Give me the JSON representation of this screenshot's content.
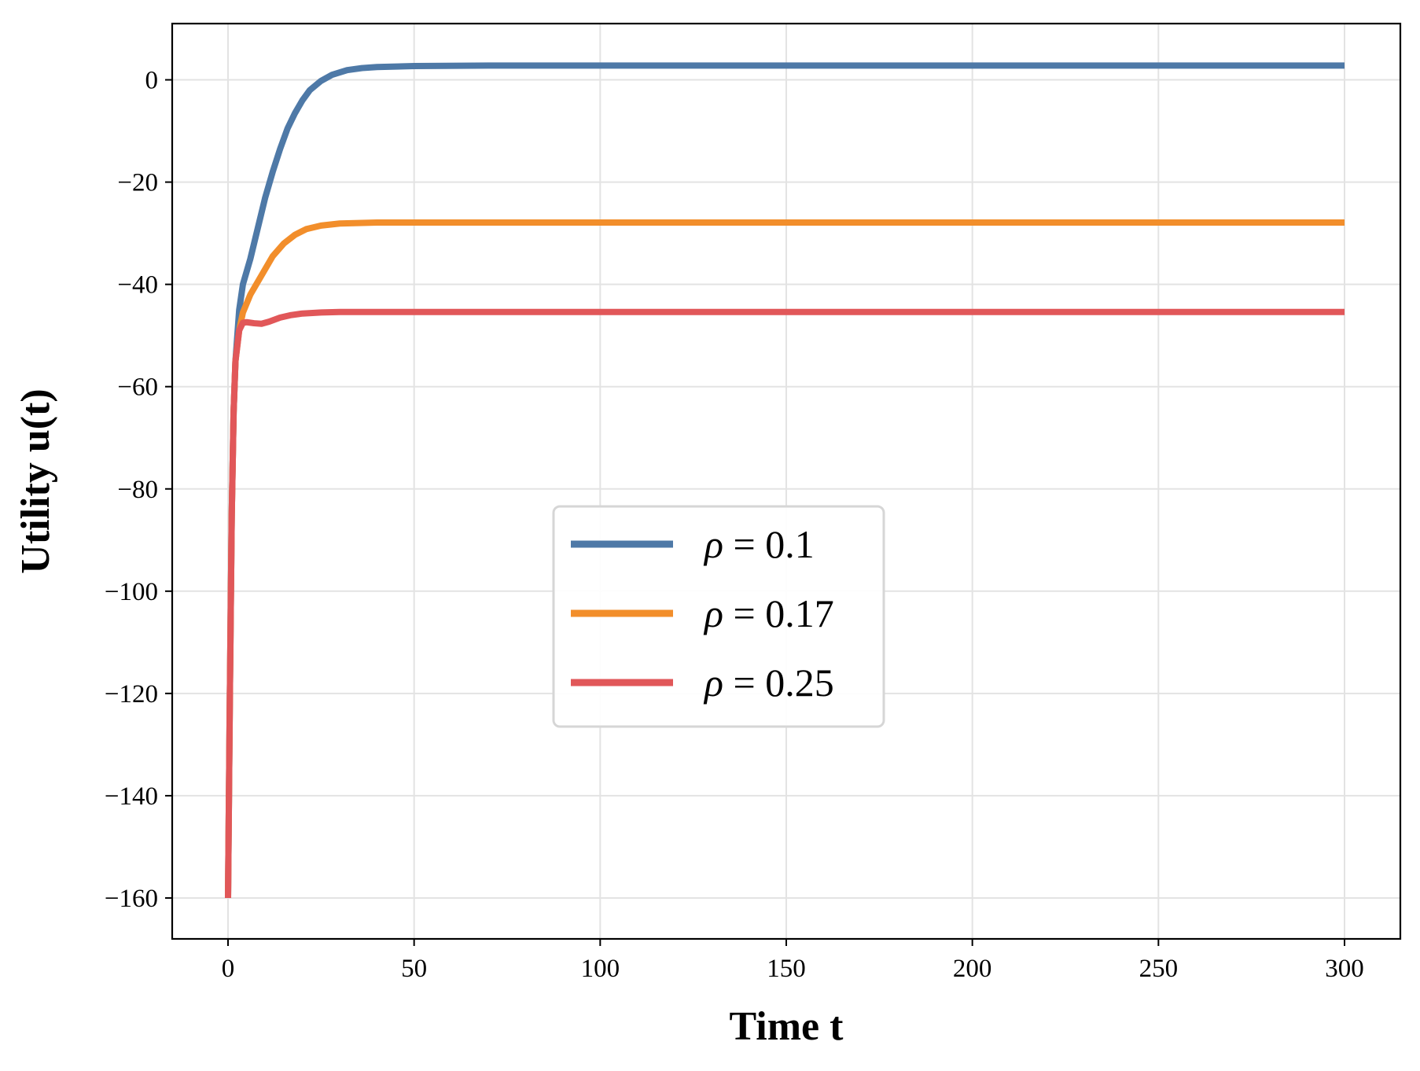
{
  "chart_data": {
    "type": "line",
    "xlabel": "Time t",
    "ylabel": "Utility u(t)",
    "xlim": [
      -15,
      315
    ],
    "ylim": [
      -168,
      11
    ],
    "xticks": [
      0,
      50,
      100,
      150,
      200,
      250,
      300
    ],
    "yticks": [
      0,
      -20,
      -40,
      -60,
      -80,
      -100,
      -120,
      -140,
      -160
    ],
    "xtick_labels": [
      "0",
      "50",
      "100",
      "150",
      "200",
      "250",
      "300"
    ],
    "ytick_labels": [
      "0",
      "−20",
      "−40",
      "−60",
      "−80",
      "−100",
      "−120",
      "−140",
      "−160"
    ],
    "grid": true,
    "legend_position": "center",
    "series": [
      {
        "name": "ρ = 0.1",
        "name_symbol": "ρ",
        "name_rest": " = 0.1",
        "color": "#4e79a7",
        "points": [
          [
            0,
            -160
          ],
          [
            0.5,
            -120
          ],
          [
            1,
            -85
          ],
          [
            1.5,
            -65
          ],
          [
            2,
            -55
          ],
          [
            3,
            -45
          ],
          [
            4,
            -40
          ],
          [
            6,
            -35
          ],
          [
            8,
            -29
          ],
          [
            10,
            -23
          ],
          [
            12,
            -18
          ],
          [
            14,
            -13.5
          ],
          [
            16,
            -9.5
          ],
          [
            18,
            -6.5
          ],
          [
            20,
            -4
          ],
          [
            22,
            -2
          ],
          [
            25,
            -0.2
          ],
          [
            28,
            1
          ],
          [
            32,
            1.9
          ],
          [
            36,
            2.3
          ],
          [
            40,
            2.5
          ],
          [
            50,
            2.7
          ],
          [
            70,
            2.8
          ],
          [
            100,
            2.8
          ],
          [
            300,
            2.8
          ]
        ]
      },
      {
        "name": "ρ = 0.17",
        "name_symbol": "ρ",
        "name_rest": " = 0.17",
        "color": "#f28e2b",
        "points": [
          [
            0,
            -160
          ],
          [
            0.5,
            -120
          ],
          [
            1,
            -85
          ],
          [
            1.5,
            -65
          ],
          [
            2,
            -55
          ],
          [
            3,
            -49
          ],
          [
            4,
            -45.5
          ],
          [
            6,
            -42
          ],
          [
            8,
            -39.5
          ],
          [
            10,
            -37
          ],
          [
            12,
            -34.5
          ],
          [
            15,
            -32
          ],
          [
            18,
            -30.3
          ],
          [
            21,
            -29.2
          ],
          [
            25,
            -28.5
          ],
          [
            30,
            -28.1
          ],
          [
            40,
            -27.9
          ],
          [
            60,
            -27.9
          ],
          [
            300,
            -27.9
          ]
        ]
      },
      {
        "name": "ρ = 0.25",
        "name_symbol": "ρ",
        "name_rest": " = 0.25",
        "color": "#e15759",
        "points": [
          [
            0,
            -160
          ],
          [
            0.5,
            -120
          ],
          [
            1,
            -85
          ],
          [
            1.5,
            -65
          ],
          [
            2,
            -55
          ],
          [
            3,
            -49
          ],
          [
            4,
            -47.5
          ],
          [
            5,
            -47.4
          ],
          [
            7,
            -47.6
          ],
          [
            9,
            -47.7
          ],
          [
            11,
            -47.3
          ],
          [
            14,
            -46.5
          ],
          [
            17,
            -46
          ],
          [
            20,
            -45.7
          ],
          [
            25,
            -45.5
          ],
          [
            30,
            -45.4
          ],
          [
            50,
            -45.4
          ],
          [
            300,
            -45.4
          ]
        ]
      }
    ]
  }
}
